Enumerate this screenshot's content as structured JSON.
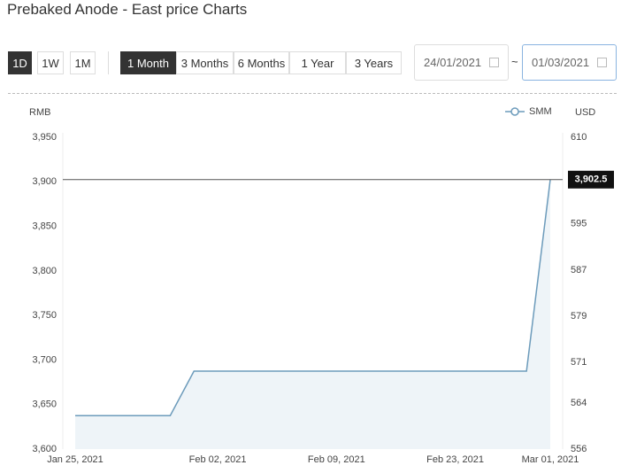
{
  "header": {
    "title": "Prebaked Anode - East price Charts"
  },
  "controls": {
    "intervals": [
      "1D",
      "1W",
      "1M"
    ],
    "active_interval": 0,
    "ranges": [
      "1 Month",
      "3 Months",
      "6 Months",
      "1 Year",
      "3 Years"
    ],
    "active_range": 0,
    "start_date": "24/01/2021",
    "range_separator": "~",
    "end_date": "01/03/2021"
  },
  "chart_data": {
    "type": "line",
    "y_label": "RMB",
    "y2_label": "USD",
    "categories": [
      "Jan 25, 2021",
      null,
      null,
      null,
      null,
      null,
      "Feb 02, 2021",
      null,
      null,
      null,
      null,
      "Feb 09, 2021",
      null,
      null,
      null,
      null,
      "Feb 23, 2021",
      null,
      null,
      null,
      "Mar 01, 2021"
    ],
    "series": [
      {
        "name": "SMM",
        "color": "#6c9bbb",
        "values": [
          3637.5,
          3637.5,
          3637.5,
          3637.5,
          3637.5,
          3687.5,
          3687.5,
          3687.5,
          3687.5,
          3687.5,
          3687.5,
          3687.5,
          3687.5,
          3687.5,
          3687.5,
          3687.5,
          3687.5,
          3687.5,
          3687.5,
          3687.5,
          3902.5
        ],
        "value_labels": [
          null,
          null,
          null,
          null,
          null,
          null,
          null,
          null,
          null,
          null,
          null,
          null,
          null,
          null,
          null,
          null,
          null,
          null,
          null,
          null,
          "3,902.5"
        ]
      }
    ],
    "ylim": [
      3600,
      3950
    ],
    "yticks": [
      {
        "value": 3600,
        "label": "3,600"
      },
      {
        "value": 3650,
        "label": "3,650"
      },
      {
        "value": 3700,
        "label": "3,700"
      },
      {
        "value": 3750,
        "label": "3,750"
      },
      {
        "value": 3800,
        "label": "3,800"
      },
      {
        "value": 3850,
        "label": "3,850"
      },
      {
        "value": 3900,
        "label": "3,900"
      },
      {
        "value": 3950,
        "label": "3,950"
      }
    ],
    "y2lim": [
      556,
      610
    ],
    "y2ticks": [
      556,
      564,
      571,
      579,
      587,
      595,
      610
    ],
    "area_fill": "#eef4f8",
    "legend": "top-right"
  }
}
